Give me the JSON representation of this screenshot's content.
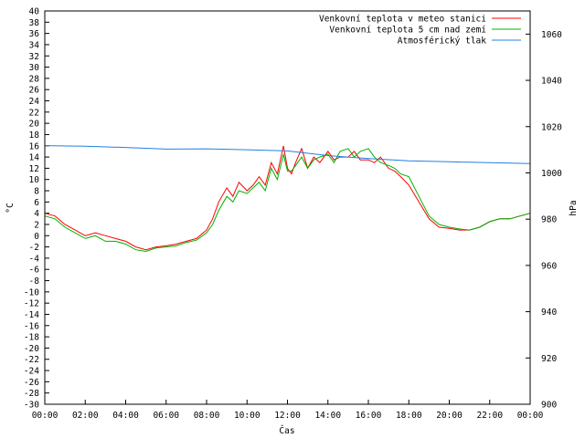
{
  "chart_data": {
    "type": "line",
    "xlabel": "Čas",
    "ylabel_left": "°C",
    "ylabel_right": "hPa",
    "xlim": [
      0,
      24
    ],
    "ylim_left": [
      -30,
      40
    ],
    "ylim_right": [
      900,
      1070
    ],
    "x_ticks": [
      "00:00",
      "02:00",
      "04:00",
      "06:00",
      "08:00",
      "10:00",
      "12:00",
      "14:00",
      "16:00",
      "18:00",
      "20:00",
      "22:00",
      "00:00"
    ],
    "y_left_ticks": [
      40,
      38,
      36,
      34,
      32,
      30,
      28,
      26,
      24,
      22,
      20,
      18,
      16,
      14,
      12,
      10,
      8,
      6,
      4,
      2,
      0,
      -2,
      -4,
      -6,
      -8,
      -10,
      -12,
      -14,
      -16,
      -18,
      -20,
      -22,
      -24,
      -26,
      -28,
      -30
    ],
    "y_right_ticks": [
      1060,
      1040,
      1020,
      1000,
      980,
      960,
      940,
      920,
      900
    ],
    "legend_position": "top-right",
    "grid": false,
    "series": [
      {
        "name": "Venkovní teplota v meteo stanici",
        "axis": "left",
        "color": "#ff0000",
        "x": [
          0,
          0.5,
          1,
          1.5,
          2,
          2.5,
          3,
          3.5,
          4,
          4.5,
          5,
          5.5,
          6,
          6.5,
          7,
          7.5,
          8,
          8.3,
          8.6,
          9,
          9.3,
          9.6,
          10,
          10.3,
          10.6,
          10.9,
          11.2,
          11.5,
          11.8,
          12,
          12.2,
          12.4,
          12.7,
          13,
          13.3,
          13.6,
          14,
          14.3,
          14.6,
          15,
          15.3,
          15.6,
          16,
          16.3,
          16.6,
          17,
          17.3,
          17.6,
          18,
          18.5,
          19,
          19.5,
          20,
          20.5,
          21,
          21.5,
          22,
          22.5,
          23,
          23.5,
          24
        ],
        "y": [
          4,
          3.5,
          2,
          1,
          0,
          0.5,
          0,
          -0.5,
          -1,
          -2,
          -2.5,
          -2,
          -1.8,
          -1.5,
          -1,
          -0.5,
          1,
          3,
          6,
          8.5,
          7,
          9.5,
          8,
          9,
          10.5,
          9,
          13,
          11,
          16,
          12,
          11,
          13,
          15.5,
          12,
          14,
          13,
          15,
          13.5,
          14,
          14,
          15,
          13.5,
          13.5,
          13,
          14,
          12,
          11.5,
          10.5,
          9,
          6,
          3,
          1.5,
          1.3,
          1,
          1,
          1.5,
          2.5,
          3,
          3,
          3.5,
          4
        ]
      },
      {
        "name": "Venkovní teplota 5 cm nad zemí",
        "axis": "left",
        "color": "#00b000",
        "x": [
          0,
          0.5,
          1,
          1.5,
          2,
          2.5,
          3,
          3.5,
          4,
          4.5,
          5,
          5.5,
          6,
          6.5,
          7,
          7.5,
          8,
          8.3,
          8.6,
          9,
          9.3,
          9.6,
          10,
          10.3,
          10.6,
          10.9,
          11.2,
          11.5,
          11.8,
          12,
          12.2,
          12.4,
          12.7,
          13,
          13.3,
          13.6,
          14,
          14.3,
          14.6,
          15,
          15.3,
          15.6,
          16,
          16.3,
          16.6,
          17,
          17.3,
          17.6,
          18,
          18.5,
          19,
          19.5,
          20,
          20.5,
          21,
          21.5,
          22,
          22.5,
          23,
          23.5,
          24
        ],
        "y": [
          3.5,
          3,
          1.5,
          0.5,
          -0.5,
          0,
          -1,
          -1,
          -1.5,
          -2.5,
          -2.8,
          -2.2,
          -2,
          -1.8,
          -1.2,
          -0.8,
          0.5,
          2,
          4.5,
          7,
          6,
          8,
          7.5,
          8.5,
          9.5,
          8,
          12,
          10,
          14.5,
          11.5,
          11.5,
          12.5,
          14,
          12,
          13.5,
          14,
          14.5,
          13,
          15,
          15.5,
          14,
          15,
          15.5,
          14,
          13,
          12.5,
          12,
          11,
          10.5,
          7,
          3.5,
          2,
          1.5,
          1.2,
          1,
          1.5,
          2.5,
          3,
          3,
          3.5,
          4
        ]
      },
      {
        "name": "Atmosférický tlak",
        "axis": "right",
        "color": "#2080e0",
        "x": [
          0,
          2,
          4,
          6,
          8,
          10,
          12,
          14,
          16,
          18,
          20,
          22,
          24
        ],
        "y": [
          1011.8,
          1011.5,
          1011,
          1010.3,
          1010.4,
          1010,
          1009.5,
          1007.5,
          1006.2,
          1005.2,
          1004.8,
          1004.4,
          1004
        ]
      }
    ]
  }
}
